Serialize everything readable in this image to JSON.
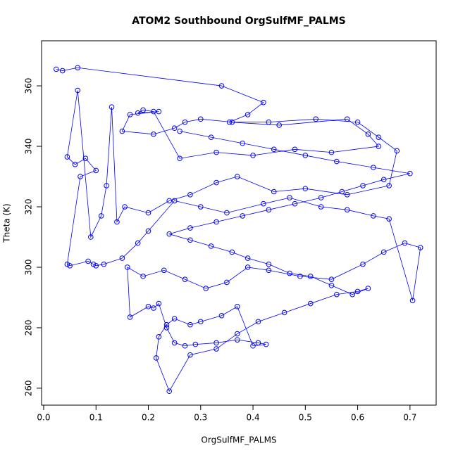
{
  "chart_data": {
    "type": "scatter",
    "connect": true,
    "color": "#0000ff",
    "title": "ATOM2 Southbound OrgSulfMF_PALMS",
    "x_label": "OrgSulfMF_PALMS",
    "y_label": "Theta (K)",
    "xlim": [
      -0.004,
      0.75
    ],
    "ylim": [
      254.4,
      374.9
    ],
    "xticks": [
      {
        "value": 0,
        "label": "0.0"
      },
      {
        "value": 0.1,
        "label": "0.1"
      },
      {
        "value": 0.2,
        "label": "0.2"
      },
      {
        "value": 0.3,
        "label": "0.3"
      },
      {
        "value": 0.4,
        "label": "0.4"
      },
      {
        "value": 0.5,
        "label": "0.5"
      },
      {
        "value": 0.6,
        "label": "0.6"
      },
      {
        "value": 0.7,
        "label": "0.7"
      }
    ],
    "yticks": [
      260,
      280,
      300,
      320,
      340,
      360
    ],
    "x": [
      0.024,
      0.036,
      0.065,
      0.34,
      0.42,
      0.39,
      0.355,
      0.45,
      0.58,
      0.62,
      0.64,
      0.55,
      0.48,
      0.4,
      0.33,
      0.26,
      0.21,
      0.19,
      0.18,
      0.22,
      0.165,
      0.15,
      0.21,
      0.25,
      0.27,
      0.3,
      0.36,
      0.43,
      0.52,
      0.6,
      0.64,
      0.675,
      0.66,
      0.58,
      0.5,
      0.44,
      0.37,
      0.33,
      0.28,
      0.24,
      0.2,
      0.155,
      0.14,
      0.13,
      0.12,
      0.11,
      0.09,
      0.065,
      0.045,
      0.06,
      0.08,
      0.1,
      0.07,
      0.045,
      0.05,
      0.085,
      0.095,
      0.1,
      0.115,
      0.15,
      0.18,
      0.2,
      0.25,
      0.3,
      0.35,
      0.42,
      0.47,
      0.53,
      0.58,
      0.63,
      0.66,
      0.705,
      0.72,
      0.69,
      0.65,
      0.61,
      0.55,
      0.49,
      0.43,
      0.39,
      0.35,
      0.31,
      0.27,
      0.23,
      0.19,
      0.16,
      0.165,
      0.2,
      0.21,
      0.22,
      0.235,
      0.25,
      0.27,
      0.29,
      0.33,
      0.37,
      0.41,
      0.425,
      0.4,
      0.37,
      0.34,
      0.3,
      0.28,
      0.25,
      0.235,
      0.22,
      0.215,
      0.24,
      0.28,
      0.33,
      0.37,
      0.41,
      0.46,
      0.51,
      0.56,
      0.6,
      0.62,
      0.59,
      0.55,
      0.51,
      0.47,
      0.43,
      0.39,
      0.36,
      0.32,
      0.28,
      0.24,
      0.28,
      0.33,
      0.38,
      0.43,
      0.48,
      0.53,
      0.57,
      0.61,
      0.65,
      0.7,
      0.63,
      0.56,
      0.5,
      0.44,
      0.38,
      0.32,
      0.26
    ],
    "y": [
      365.5,
      365,
      366,
      360,
      354.5,
      350.5,
      348,
      347,
      349,
      344,
      340,
      338,
      339,
      337,
      338,
      336,
      351.5,
      352,
      351,
      351.5,
      350.5,
      345,
      344,
      346,
      348,
      349,
      348,
      348,
      349,
      348,
      343,
      338.5,
      327,
      324,
      326,
      325,
      330,
      328,
      324,
      322,
      318,
      320,
      315,
      353,
      327,
      317,
      310,
      358.5,
      336.5,
      334,
      336,
      332,
      330,
      301,
      300.5,
      302,
      301,
      300.5,
      301,
      303,
      308,
      312,
      322,
      320,
      318,
      321,
      323,
      320,
      319,
      317,
      316,
      289,
      306.5,
      308,
      305,
      301,
      296,
      297,
      299,
      300,
      295,
      293,
      296,
      299,
      297,
      300,
      283.5,
      287,
      286.5,
      288,
      280,
      275,
      274,
      274.5,
      275,
      276,
      275,
      274.5,
      274,
      287,
      284,
      282,
      281,
      283,
      281,
      277,
      270,
      259,
      271,
      273,
      278,
      282,
      285,
      288,
      291,
      292,
      293,
      291,
      294,
      297,
      298,
      301,
      303,
      305,
      307,
      309,
      311,
      313,
      315,
      317,
      319,
      321,
      323,
      325,
      327,
      329,
      331,
      333,
      335,
      337,
      339,
      341,
      343,
      345
    ]
  }
}
